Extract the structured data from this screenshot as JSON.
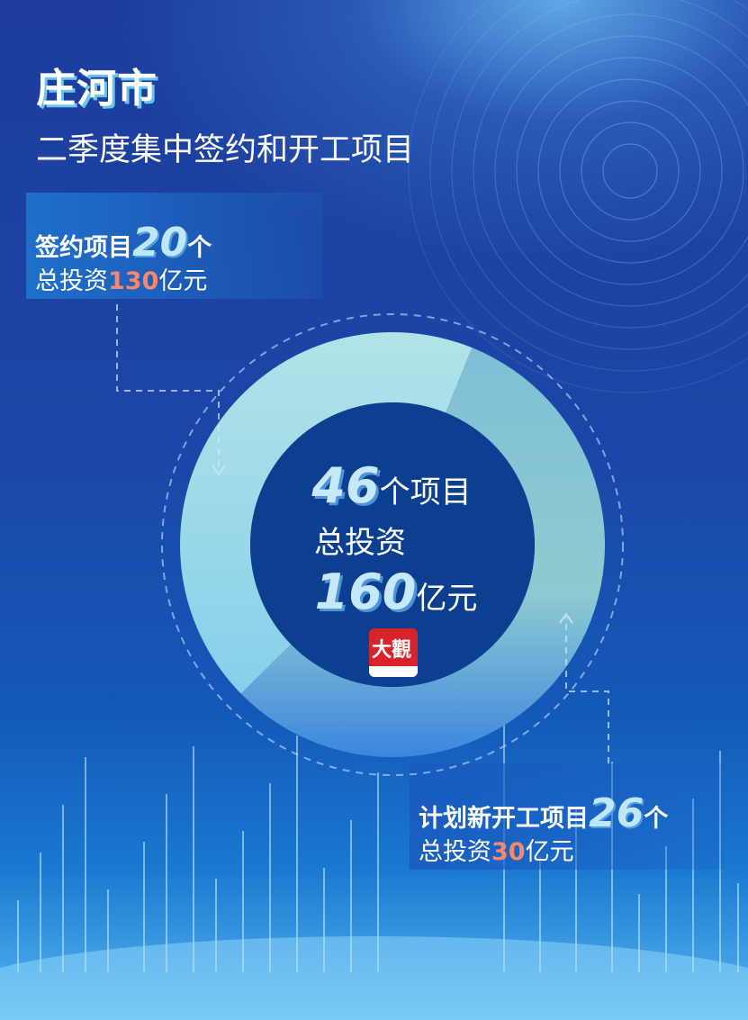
{
  "header": {
    "title": "庄河市",
    "subtitle": "二季度集中签约和开工项目"
  },
  "signed": {
    "label": "签约项目",
    "count": "20",
    "unit": "个",
    "invest_prefix": "总投资",
    "invest_value": "130",
    "invest_unit": "亿元"
  },
  "new_start": {
    "label": "计划新开工项目",
    "count": "26",
    "unit": "个",
    "invest_prefix": "总投资",
    "invest_value": "30",
    "invest_unit": "亿元"
  },
  "center": {
    "count": "46",
    "count_suffix": "个项目",
    "invest_label": "总投资",
    "invest_value": "160",
    "invest_unit": "亿元"
  },
  "logo": {
    "text": "大观"
  },
  "colors": {
    "signed_segment": "#9fdbe6",
    "new_start_segment": "#5fa8d8",
    "center": "#0d3f91",
    "highlight": "#f7866a"
  },
  "chart_data": {
    "type": "pie",
    "donut": true,
    "categories": [
      "签约项目",
      "计划新开工项目"
    ],
    "values": [
      20,
      26
    ],
    "total": 46
  }
}
